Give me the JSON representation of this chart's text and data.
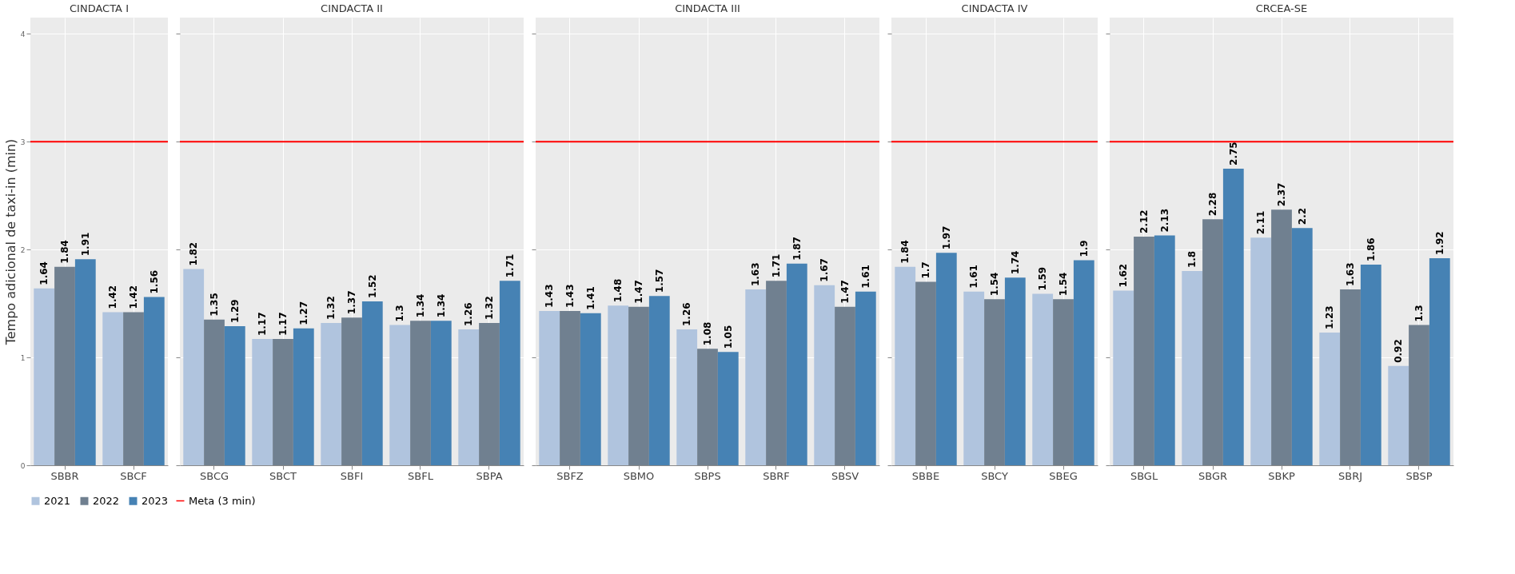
{
  "chart_data": [
    {
      "type": "bar",
      "title": "CINDACTA I",
      "ylabel": "Tempo adicional de taxi-in (min)",
      "categories": [
        "SBBR",
        "SBCF"
      ],
      "series": [
        {
          "name": "2021",
          "color": "#b0c4de",
          "values": [
            1.64,
            1.42
          ]
        },
        {
          "name": "2022",
          "color": "#708090",
          "values": [
            1.84,
            1.42
          ]
        },
        {
          "name": "2023",
          "color": "#4682b4",
          "values": [
            1.91,
            1.56
          ]
        }
      ],
      "ylim": [
        0,
        4.15
      ],
      "yticks": [
        0,
        1,
        2,
        3,
        4
      ],
      "ref_lines": [
        {
          "axis": "y",
          "value": 3,
          "label": "Meta (3 min)",
          "color": "#ff0000"
        }
      ],
      "data_labels": true,
      "grid": true,
      "legend": "bottom"
    },
    {
      "type": "bar",
      "title": "CINDACTA II",
      "categories": [
        "SBCG",
        "SBCT",
        "SBFI",
        "SBFL",
        "SBPA"
      ],
      "series": [
        {
          "name": "2021",
          "color": "#b0c4de",
          "values": [
            1.82,
            1.17,
            1.32,
            1.3,
            1.26
          ]
        },
        {
          "name": "2022",
          "color": "#708090",
          "values": [
            1.35,
            1.17,
            1.37,
            1.34,
            1.32
          ]
        },
        {
          "name": "2023",
          "color": "#4682b4",
          "values": [
            1.29,
            1.27,
            1.52,
            1.34,
            1.71
          ]
        }
      ],
      "ylim": [
        0,
        4.15
      ],
      "yticks": [
        0,
        1,
        2,
        3,
        4
      ],
      "tick_labels": "x",
      "ref_lines": [
        {
          "axis": "y",
          "value": 3,
          "color": "#ff0000"
        }
      ],
      "data_labels": true,
      "grid": true,
      "legend": "bottom"
    },
    {
      "type": "bar",
      "title": "CINDACTA III",
      "categories": [
        "SBFZ",
        "SBMO",
        "SBPS",
        "SBRF",
        "SBSV"
      ],
      "series": [
        {
          "name": "2021",
          "color": "#b0c4de",
          "values": [
            1.43,
            1.48,
            1.26,
            1.63,
            1.67
          ]
        },
        {
          "name": "2022",
          "color": "#708090",
          "values": [
            1.43,
            1.47,
            1.08,
            1.71,
            1.47
          ]
        },
        {
          "name": "2023",
          "color": "#4682b4",
          "values": [
            1.41,
            1.57,
            1.05,
            1.87,
            1.61
          ]
        }
      ],
      "ylim": [
        0,
        4.15
      ],
      "yticks": [
        0,
        1,
        2,
        3,
        4
      ],
      "tick_labels": "x",
      "ref_lines": [
        {
          "axis": "y",
          "value": 3,
          "color": "#ff0000"
        }
      ],
      "data_labels": true,
      "grid": true,
      "legend": "bottom"
    },
    {
      "type": "bar",
      "title": "CINDACTA IV",
      "categories": [
        "SBBE",
        "SBCY",
        "SBEG"
      ],
      "series": [
        {
          "name": "2021",
          "color": "#b0c4de",
          "values": [
            1.84,
            1.61,
            1.59
          ]
        },
        {
          "name": "2022",
          "color": "#708090",
          "values": [
            1.7,
            1.54,
            1.54
          ]
        },
        {
          "name": "2023",
          "color": "#4682b4",
          "values": [
            1.97,
            1.74,
            1.9
          ]
        }
      ],
      "ylim": [
        0,
        4.15
      ],
      "yticks": [
        0,
        1,
        2,
        3,
        4
      ],
      "tick_labels": "x",
      "ref_lines": [
        {
          "axis": "y",
          "value": 3,
          "color": "#ff0000"
        }
      ],
      "data_labels": true,
      "grid": true,
      "legend": "bottom"
    },
    {
      "type": "bar",
      "title": "CRCEA-SE",
      "categories": [
        "SBGL",
        "SBGR",
        "SBKP",
        "SBRJ",
        "SBSP"
      ],
      "series": [
        {
          "name": "2021",
          "color": "#b0c4de",
          "values": [
            1.62,
            1.8,
            2.11,
            1.23,
            0.92
          ]
        },
        {
          "name": "2022",
          "color": "#708090",
          "values": [
            2.12,
            2.28,
            2.37,
            1.63,
            1.3
          ]
        },
        {
          "name": "2023",
          "color": "#4682b4",
          "values": [
            2.13,
            2.75,
            2.2,
            1.86,
            1.92
          ]
        }
      ],
      "ylim": [
        0,
        4.15
      ],
      "yticks": [
        0,
        1,
        2,
        3,
        4
      ],
      "tick_labels": "x",
      "ref_lines": [
        {
          "axis": "y",
          "value": 3,
          "color": "#ff0000"
        }
      ],
      "data_labels": true,
      "grid": true,
      "legend": "bottom"
    }
  ]
}
